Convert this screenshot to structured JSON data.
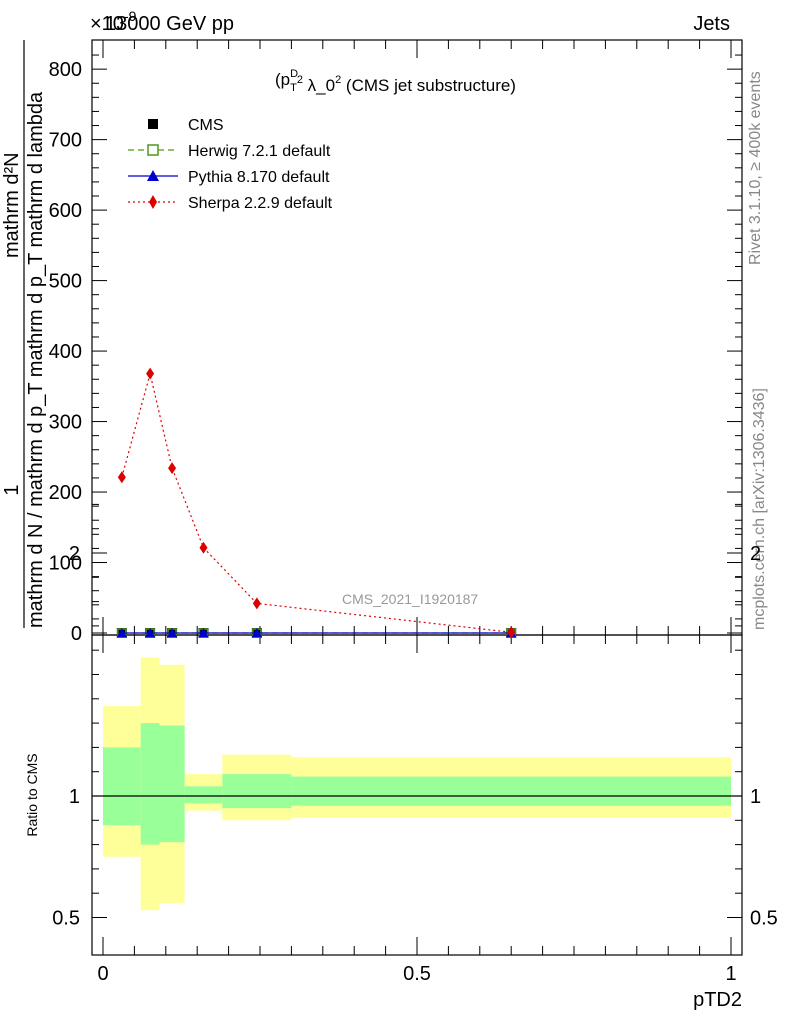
{
  "header": {
    "exponent_label": "×10",
    "exponent_power": "-9",
    "left_title": "13000 GeV pp",
    "right_title": "Jets"
  },
  "side_labels": {
    "rivet": "Rivet 3.1.10, ≥ 400k events",
    "mcplots": "mcplots.cern.ch [arXiv:1306.3436]"
  },
  "main_plot": {
    "title_prefix": "(p",
    "title_sup": "D",
    "title_sub": "T",
    "title_sup2": "2",
    "title_mid": " λ_0",
    "title_sup3": "2",
    "title_suffix": " (CMS jet substructure)",
    "ylabel_numerator": "1",
    "ylabel_denominator": "mathrm d N / mathrm d p_T mathrm d p_T mathrm d lambda",
    "ylabel_top": "mathrm d²N",
    "watermark": "CMS_2021_I1920187"
  },
  "ratio_plot": {
    "ylabel": "Ratio to CMS",
    "xlabel": "pTD2"
  },
  "legend": [
    {
      "label": "CMS",
      "color": "#000000",
      "marker": "square"
    },
    {
      "label": "Herwig 7.2.1 default",
      "color": "#4a9a1e",
      "marker": "open-square",
      "dash": "dashed"
    },
    {
      "label": "Pythia 8.170 default",
      "color": "#0000cc",
      "marker": "triangle",
      "dash": "solid"
    },
    {
      "label": "Sherpa 2.2.9 default",
      "color": "#dd0000",
      "marker": "diamond",
      "dash": "dotted"
    }
  ],
  "chart_data": {
    "type": "line",
    "x_range": [
      0,
      1
    ],
    "main_ylim": [
      0,
      830
    ],
    "main_yticks": [
      0,
      100,
      200,
      300,
      400,
      500,
      600,
      700,
      800
    ],
    "ratio_ylim": [
      0.4,
      2.3
    ],
    "ratio_yticks": [
      0.5,
      1,
      2
    ],
    "xticks": [
      0,
      0.5,
      1
    ],
    "xtick_labels": [
      "0",
      "0.5",
      "1"
    ],
    "series": [
      {
        "name": "CMS",
        "x": [
          0.03,
          0.075,
          0.11,
          0.16,
          0.245,
          0.65
        ],
        "y": [
          0,
          0,
          0,
          0,
          0,
          0
        ]
      },
      {
        "name": "Herwig 7.2.1 default",
        "x": [
          0.03,
          0.075,
          0.11,
          0.16,
          0.245,
          0.65
        ],
        "y": [
          0,
          0,
          0,
          0,
          0,
          0
        ]
      },
      {
        "name": "Pythia 8.170 default",
        "x": [
          0.03,
          0.075,
          0.11,
          0.16,
          0.245,
          0.65
        ],
        "y": [
          0,
          0,
          0,
          0,
          0,
          0
        ]
      },
      {
        "name": "Sherpa 2.2.9 default",
        "x": [
          0.03,
          0.075,
          0.11,
          0.16,
          0.245,
          0.65
        ],
        "y": [
          221,
          368,
          234,
          121,
          42,
          1
        ]
      }
    ],
    "ratio_bands": [
      {
        "x0": 0.0,
        "x1": 0.06,
        "yellow": [
          0.75,
          1.37
        ],
        "green": [
          0.88,
          1.2
        ]
      },
      {
        "x0": 0.06,
        "x1": 0.09,
        "yellow": [
          0.53,
          1.57
        ],
        "green": [
          0.8,
          1.3
        ]
      },
      {
        "x0": 0.09,
        "x1": 0.13,
        "yellow": [
          0.56,
          1.54
        ],
        "green": [
          0.81,
          1.29
        ]
      },
      {
        "x0": 0.13,
        "x1": 0.19,
        "yellow": [
          0.94,
          1.09
        ],
        "green": [
          0.97,
          1.04
        ]
      },
      {
        "x0": 0.19,
        "x1": 0.3,
        "yellow": [
          0.9,
          1.17
        ],
        "green": [
          0.95,
          1.09
        ]
      },
      {
        "x0": 0.3,
        "x1": 1.0,
        "yellow": [
          0.91,
          1.16
        ],
        "green": [
          0.96,
          1.08
        ]
      }
    ]
  }
}
